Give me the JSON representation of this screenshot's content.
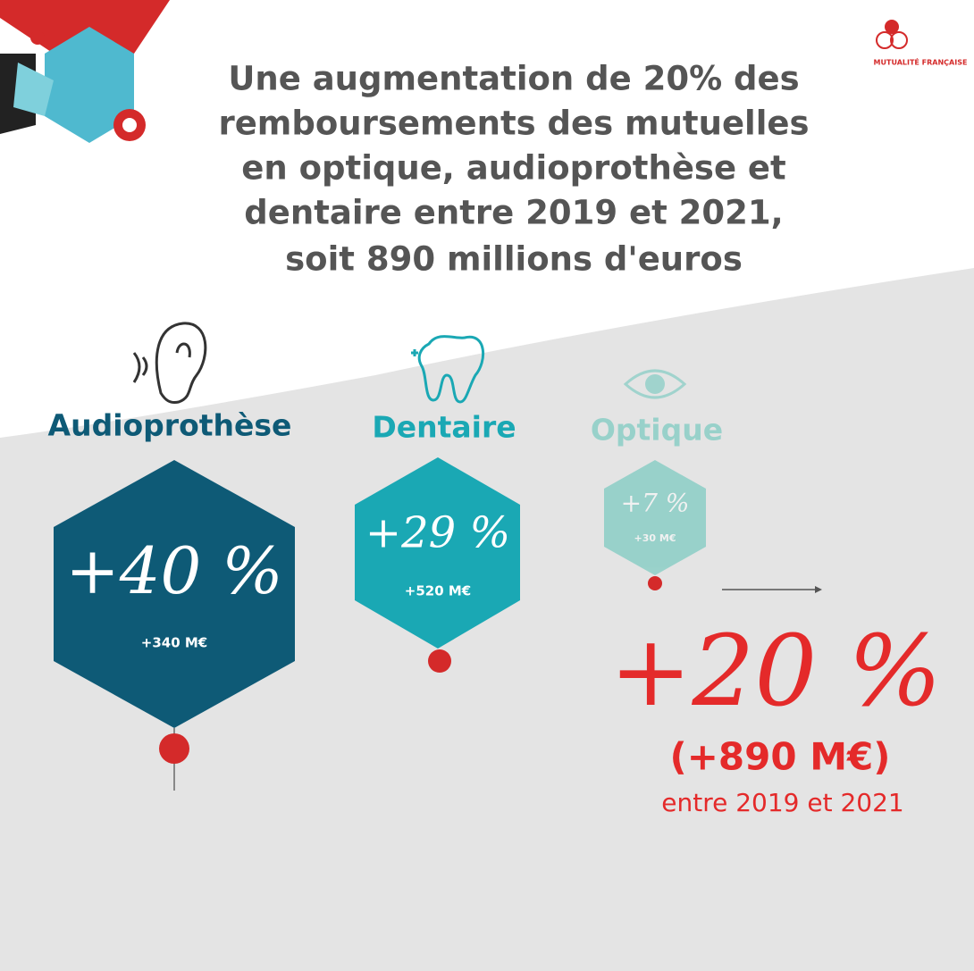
{
  "title": [
    "Une augmentation de 20% des",
    "remboursements des mutuelles",
    "en optique, audioprothèse et",
    "dentaire entre 2019 et 2021,",
    "soit 890 millions d'euros"
  ],
  "logo": "MUTUALITÉ FRANÇAISE",
  "items": [
    {
      "label": "Audioprothèse",
      "percent": "+40 %",
      "amount": "+340 M€"
    },
    {
      "label": "Dentaire",
      "percent": "+29 %",
      "amount": "+520 M€"
    },
    {
      "label": "Optique",
      "percent": "+7 %",
      "amount": "+30 M€"
    }
  ],
  "total": {
    "percent": "+20 %",
    "amount": "(+890 M€)",
    "period": "entre 2019 et 2021"
  }
}
